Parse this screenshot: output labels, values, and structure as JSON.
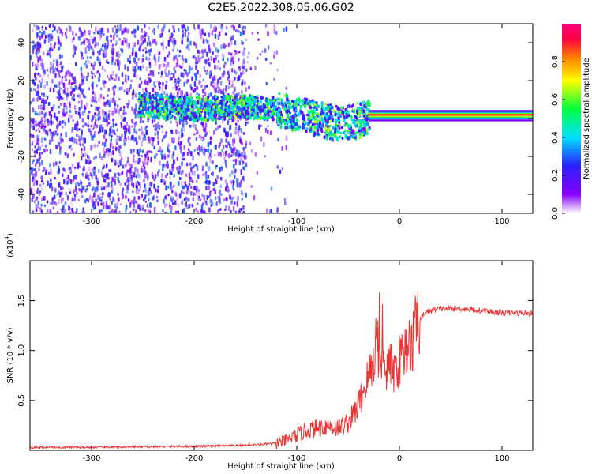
{
  "title": "C2E5.2022.308.05.06.G02",
  "chart_data": [
    {
      "type": "heatmap",
      "xlabel": "Height of straight line (km)",
      "ylabel": "Frequency (Hz)",
      "xlim": [
        -360,
        130
      ],
      "ylim": [
        -50,
        50
      ],
      "x_ticks": [
        -300,
        -200,
        -100,
        0,
        100
      ],
      "y_ticks": [
        -40,
        -20,
        0,
        20,
        40
      ],
      "colorbar": {
        "label": "Normalized spectral amplitude",
        "range": [
          0.0,
          1.0
        ],
        "ticks": [
          0.0,
          0.2,
          0.4,
          0.6,
          0.8
        ],
        "tick_labels": [
          "0.0",
          "0.2",
          "0.4",
          "0.6",
          "0.8"
        ],
        "colormap": [
          "#ffffff",
          "#8a00ff",
          "#2a20ff",
          "#00e0ff",
          "#00ff40",
          "#ffff00",
          "#ff8000",
          "#ff0040",
          "#ff0080"
        ]
      },
      "regions": [
        {
          "x": [
            -360,
            -150
          ],
          "freq": [
            -50,
            50
          ],
          "level": 0.4,
          "description_level": "scattered"
        },
        {
          "x": [
            -150,
            -110
          ],
          "freq": [
            -50,
            50
          ],
          "level": 0.1
        },
        {
          "x": [
            -250,
            -30
          ],
          "freq": [
            -10,
            12
          ],
          "level": 0.7
        },
        {
          "x": [
            -30,
            130
          ],
          "freq": [
            -1,
            4
          ],
          "level": 1.0
        }
      ],
      "ridge": [
        [
          -250,
          8
        ],
        [
          -210,
          6
        ],
        [
          -150,
          7
        ],
        [
          -120,
          6
        ],
        [
          -90,
          2
        ],
        [
          -60,
          -2
        ],
        [
          -40,
          0
        ],
        [
          -30,
          2
        ],
        [
          0,
          2
        ],
        [
          130,
          2
        ]
      ]
    },
    {
      "type": "line",
      "xlabel": "Height of straight line (km)",
      "ylabel": "SNR (10 * v/v)",
      "y_multiplier": "(x10",
      "y_multiplier_exp": "4",
      "y_multiplier_close": ")",
      "xlim": [
        -360,
        130
      ],
      "ylim": [
        0,
        1.9
      ],
      "x_ticks": [
        -300,
        -200,
        -100,
        0,
        100
      ],
      "y_ticks": [
        0.5,
        1.0,
        1.5
      ],
      "y_tick_labels": [
        "0.5",
        "1.0",
        "1.5"
      ],
      "color": "#ee3333",
      "series": [
        {
          "x": [
            -360,
            -300,
            -200,
            -150,
            -120,
            -110,
            -100,
            -90,
            -80,
            -70,
            -60,
            -50,
            -45,
            -40,
            -35,
            -30,
            -25,
            -22,
            -20,
            -18,
            -15,
            -10,
            -5,
            0,
            5,
            10,
            15,
            20,
            25,
            30,
            40,
            60,
            80,
            100,
            130
          ],
          "y": [
            0.03,
            0.03,
            0.04,
            0.05,
            0.07,
            0.1,
            0.15,
            0.2,
            0.22,
            0.25,
            0.22,
            0.28,
            0.35,
            0.45,
            0.6,
            0.75,
            0.9,
            1.2,
            0.95,
            0.9,
            0.75,
            0.85,
            0.8,
            0.9,
            1.0,
            1.05,
            1.2,
            1.3,
            1.38,
            1.4,
            1.42,
            1.42,
            1.4,
            1.38,
            1.37
          ]
        }
      ]
    }
  ]
}
